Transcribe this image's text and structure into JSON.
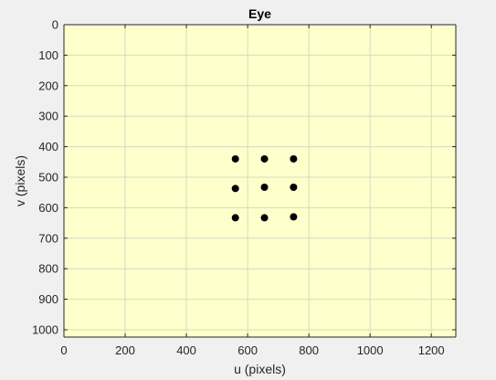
{
  "window": {
    "background": "#f0f0f0"
  },
  "chart_data": {
    "type": "scatter",
    "title": "Eye",
    "xlabel": "u (pixels)",
    "ylabel": "v (pixels)",
    "xlim": [
      0,
      1280
    ],
    "ylim": [
      0,
      1024
    ],
    "y_reversed": true,
    "grid": true,
    "xticks": [
      0,
      200,
      400,
      600,
      800,
      1000,
      1200
    ],
    "yticks": [
      0,
      100,
      200,
      300,
      400,
      500,
      600,
      700,
      800,
      900,
      1000
    ],
    "plot_background": "#ffffcc",
    "grid_color": "#d4dcc0",
    "axis_color": "#262626",
    "series": [
      {
        "marker": "filled-circle",
        "color": "#000000",
        "x": [
          560,
          655,
          750,
          560,
          655,
          750,
          560,
          655,
          750
        ],
        "y": [
          440,
          440,
          440,
          537,
          533,
          533,
          633,
          633,
          630
        ]
      }
    ]
  }
}
